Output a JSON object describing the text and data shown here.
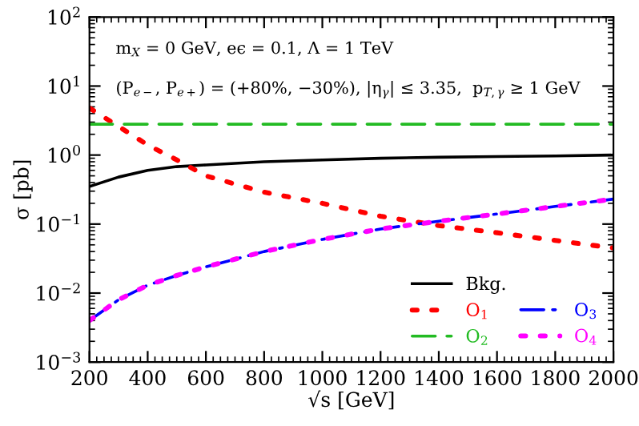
{
  "chart_data": {
    "type": "line",
    "xlabel": "√s [GeV]",
    "ylabel": "σ [pb]",
    "annotations": [
      "m$_{X}$ = 0 GeV, eϵ = 0.1, Λ = 1 TeV",
      "(P$_{e−}$, P$_{e+}$) = (+80%, −30%), |η$_{γ}$| ≤ 3.35,  p$_{T,γ}$ ≥ 1 GeV"
    ],
    "x": [
      200,
      300,
      400,
      500,
      600,
      800,
      1000,
      1200,
      1400,
      1600,
      1800,
      2000
    ],
    "series": [
      {
        "name": "Bkg.",
        "color": "#000000",
        "line_style": "solid",
        "values": [
          0.35,
          0.48,
          0.6,
          0.68,
          0.72,
          0.8,
          0.85,
          0.9,
          0.93,
          0.95,
          0.97,
          1.0
        ]
      },
      {
        "name": "O$_{1}$",
        "color": "#ff0000",
        "line_style": "dotted",
        "values": [
          4.8,
          2.6,
          1.4,
          0.85,
          0.5,
          0.29,
          0.2,
          0.13,
          0.095,
          0.075,
          0.058,
          0.045
        ]
      },
      {
        "name": "O$_{2}$",
        "color": "#22bb22",
        "line_style": "dashed",
        "values": [
          2.8,
          2.8,
          2.8,
          2.8,
          2.8,
          2.8,
          2.8,
          2.8,
          2.8,
          2.8,
          2.8,
          2.8
        ]
      },
      {
        "name": "O$_{3}$",
        "color": "#0000ff",
        "line_style": "dashdot",
        "values": [
          0.004,
          0.008,
          0.013,
          0.018,
          0.024,
          0.04,
          0.06,
          0.085,
          0.11,
          0.14,
          0.18,
          0.23
        ]
      },
      {
        "name": "O$_{4}$",
        "color": "#ff00ff",
        "line_style": "dotted",
        "values": [
          0.004,
          0.008,
          0.013,
          0.018,
          0.024,
          0.04,
          0.06,
          0.085,
          0.11,
          0.14,
          0.18,
          0.23
        ]
      }
    ],
    "log": "y",
    "xlim": [
      200,
      2000
    ],
    "xticks": [
      200,
      400,
      600,
      800,
      1000,
      1200,
      1400,
      1600,
      1800,
      2000
    ],
    "ylim": [
      0.001,
      100
    ],
    "yticks": [
      {
        "value": 0.001,
        "label": "10$^{−3}$"
      },
      {
        "value": 0.01,
        "label": "10$^{−2}$"
      },
      {
        "value": 0.1,
        "label": "10$^{−1}$"
      },
      {
        "value": 1,
        "label": "10$^{0}$"
      },
      {
        "value": 10,
        "label": "10$^{1}$"
      },
      {
        "value": 100,
        "label": "10$^{2}$"
      }
    ],
    "grid": false,
    "legend": "bottom right"
  }
}
